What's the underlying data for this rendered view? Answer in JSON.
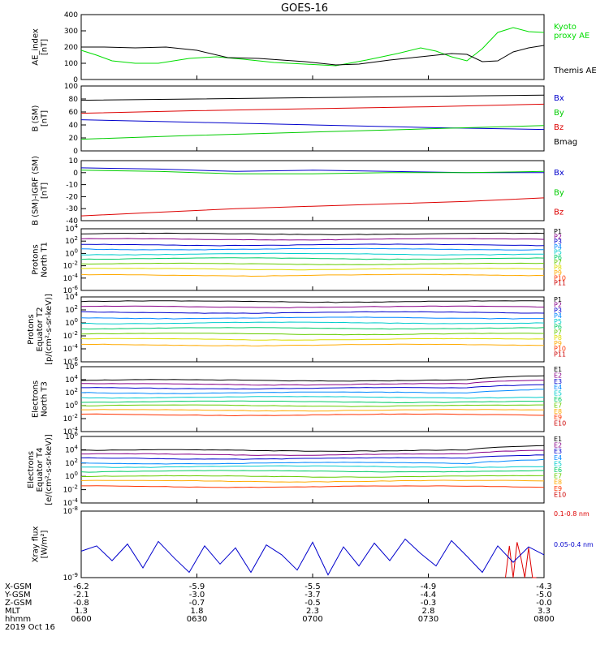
{
  "title": "GOES-16",
  "date_label": "2019 Oct 16",
  "x_axis": {
    "ticks": [
      "0600",
      "0630",
      "0700",
      "0730",
      "0800"
    ],
    "rows": [
      {
        "label": "X-GSM",
        "values": [
          "-6.2",
          "-5.9",
          "-5.5",
          "-4.9",
          "-4.3"
        ]
      },
      {
        "label": "Y-GSM",
        "values": [
          "-2.1",
          "-3.0",
          "-3.7",
          "-4.4",
          "-5.0"
        ]
      },
      {
        "label": "Z-GSM",
        "values": [
          "-0.8",
          "-0.7",
          "-0.5",
          "-0.3",
          "-0.0"
        ]
      },
      {
        "label": "MLT",
        "values": [
          "1.3",
          "1.8",
          "2.3",
          "2.8",
          "3.3"
        ]
      },
      {
        "label": "hhmm",
        "values": [
          "0600",
          "0630",
          "0700",
          "0730",
          "0800"
        ]
      }
    ]
  },
  "chart_data": [
    {
      "type": "line",
      "ylabel": "AE_index\n[nT]",
      "ylim": [
        0,
        400
      ],
      "yticks": [
        "0",
        "100",
        "200",
        "300",
        "400"
      ],
      "series": [
        {
          "name": "Kyoto\nproxy AE",
          "color": "#00dd00",
          "x": [
            0,
            4,
            8,
            14,
            20,
            28,
            35,
            42,
            50,
            58,
            66,
            74,
            82,
            88,
            92,
            96,
            100,
            104,
            108,
            112,
            116,
            120
          ],
          "values": [
            180,
            150,
            115,
            100,
            100,
            130,
            140,
            125,
            105,
            95,
            85,
            120,
            160,
            195,
            175,
            140,
            115,
            190,
            290,
            320,
            295,
            290
          ]
        },
        {
          "name": "Themis AE",
          "color": "#000000",
          "x": [
            0,
            6,
            14,
            22,
            30,
            38,
            46,
            52,
            58,
            62,
            66,
            72,
            80,
            88,
            96,
            100,
            104,
            108,
            112,
            116,
            120
          ],
          "values": [
            200,
            200,
            195,
            200,
            180,
            135,
            130,
            120,
            110,
            100,
            90,
            95,
            120,
            140,
            160,
            155,
            110,
            115,
            170,
            195,
            210
          ]
        }
      ]
    },
    {
      "type": "line",
      "ylabel": "B (SM)\n[nT]",
      "ylim": [
        0,
        100
      ],
      "yticks": [
        "0",
        "20",
        "40",
        "60",
        "80",
        "100"
      ],
      "series": [
        {
          "name": "Bx",
          "color": "#0000cc",
          "x": [
            0,
            30,
            60,
            90,
            120
          ],
          "values": [
            48,
            44,
            40,
            36,
            33
          ]
        },
        {
          "name": "By",
          "color": "#00cc00",
          "x": [
            0,
            30,
            60,
            90,
            120
          ],
          "values": [
            18,
            24,
            29,
            34,
            39
          ]
        },
        {
          "name": "Bz",
          "color": "#dd0000",
          "x": [
            0,
            30,
            60,
            90,
            120
          ],
          "values": [
            58,
            62,
            65,
            68,
            72
          ]
        },
        {
          "name": "Bmag",
          "color": "#000000",
          "x": [
            0,
            30,
            60,
            90,
            120
          ],
          "values": [
            78,
            80,
            82,
            84,
            86
          ]
        }
      ]
    },
    {
      "type": "line",
      "ylabel": "B (SM)-IGRF (SM)\n[nT]",
      "ylim": [
        -40,
        10
      ],
      "yticks": [
        "-40",
        "-30",
        "-20",
        "-10",
        "0",
        "10"
      ],
      "series": [
        {
          "name": "Bx",
          "color": "#0000cc",
          "x": [
            0,
            20,
            40,
            60,
            80,
            100,
            120
          ],
          "values": [
            4,
            3,
            1,
            2,
            1,
            0,
            0
          ]
        },
        {
          "name": "By",
          "color": "#00cc00",
          "x": [
            0,
            20,
            40,
            60,
            80,
            100,
            120
          ],
          "values": [
            2,
            1,
            -1,
            -1,
            0,
            0,
            1
          ]
        },
        {
          "name": "Bz",
          "color": "#dd0000",
          "x": [
            0,
            20,
            40,
            60,
            80,
            100,
            120
          ],
          "values": [
            -36,
            -33,
            -30,
            -28,
            -26,
            -24,
            -21
          ]
        }
      ]
    },
    {
      "type": "line",
      "scale": "log",
      "ylabel": "Protons\nNorth T1",
      "ylim": [
        1e-06,
        10000.0
      ],
      "yticks": [
        "10^4",
        "10^2",
        "10^0",
        "10^-2",
        "10^-4",
        "10^-6"
      ],
      "series": [
        {
          "name": "P1",
          "color": "#000000",
          "level": 1500
        },
        {
          "name": "P2",
          "color": "#880088",
          "level": 200
        },
        {
          "name": "P3",
          "color": "#0000cc",
          "level": 25
        },
        {
          "name": "P4",
          "color": "#0088ff",
          "level": 5
        },
        {
          "name": "P5",
          "color": "#00cccc",
          "level": 0.8
        },
        {
          "name": "P6",
          "color": "#00cc66",
          "level": 0.15
        },
        {
          "name": "P7",
          "color": "#66cc00",
          "level": 0.02
        },
        {
          "name": "P8",
          "color": "#dddd00",
          "level": 0.003
        },
        {
          "name": "P9",
          "color": "#ffaa00",
          "level": 0.0003
        },
        {
          "name": "P10",
          "color": "#ff3300",
          "level": null
        },
        {
          "name": "P11",
          "color": "#cc0000",
          "level": null
        }
      ]
    },
    {
      "type": "line",
      "scale": "log",
      "ylabel": "Protons\nEquator T2\n[p/(cm²-s-sr-keV)]",
      "ylim": [
        1e-06,
        10000.0
      ],
      "yticks": [
        "10^4",
        "10^2",
        "10^0",
        "10^-2",
        "10^-4",
        "10^-6"
      ],
      "series": [
        {
          "name": "P1",
          "color": "#000000",
          "level": 2000
        },
        {
          "name": "P2",
          "color": "#880088",
          "level": 300
        },
        {
          "name": "P3",
          "color": "#0000cc",
          "level": 40
        },
        {
          "name": "P4",
          "color": "#0088ff",
          "level": 6
        },
        {
          "name": "P5",
          "color": "#00cccc",
          "level": 1
        },
        {
          "name": "P6",
          "color": "#00cc66",
          "level": 0.15
        },
        {
          "name": "P7",
          "color": "#66cc00",
          "level": 0.02
        },
        {
          "name": "P8",
          "color": "#dddd00",
          "level": 0.003
        },
        {
          "name": "P9",
          "color": "#ffaa00",
          "level": 0.0004
        },
        {
          "name": "P10",
          "color": "#ff3300",
          "level": null
        },
        {
          "name": "P11",
          "color": "#cc0000",
          "level": null
        }
      ]
    },
    {
      "type": "line",
      "scale": "log",
      "ylabel": "Electrons\nNorth T3",
      "ylim": [
        0.0001,
        1000000.0
      ],
      "yticks": [
        "10^6",
        "10^4",
        "10^2",
        "10^0",
        "10^-2",
        "10^-4"
      ],
      "series": [
        {
          "name": "E1",
          "color": "#000000",
          "level": 8000
        },
        {
          "name": "E2",
          "color": "#880088",
          "level": 2000
        },
        {
          "name": "E3",
          "color": "#0000cc",
          "level": 500
        },
        {
          "name": "E4",
          "color": "#0088ff",
          "level": 100
        },
        {
          "name": "E5",
          "color": "#00cccc",
          "level": 20
        },
        {
          "name": "E6",
          "color": "#00cc66",
          "level": 4
        },
        {
          "name": "E7",
          "color": "#66cc00",
          "level": 1
        },
        {
          "name": "E8",
          "color": "#ffaa00",
          "level": 0.2
        },
        {
          "name": "E9",
          "color": "#ff3300",
          "level": 0.04
        },
        {
          "name": "E10",
          "color": "#cc0000",
          "level": null
        }
      ]
    },
    {
      "type": "line",
      "scale": "log",
      "ylabel": "Electrons\nEquator T4\n[e/(cm²-s-sr-keV)]",
      "ylim": [
        0.0001,
        1000000.0
      ],
      "yticks": [
        "10^6",
        "10^4",
        "10^2",
        "10^0",
        "10^-2",
        "10^-4"
      ],
      "series": [
        {
          "name": "E1",
          "color": "#000000",
          "level": 8000
        },
        {
          "name": "E2",
          "color": "#880088",
          "level": 2000
        },
        {
          "name": "E3",
          "color": "#0000cc",
          "level": 500
        },
        {
          "name": "E4",
          "color": "#0088ff",
          "level": 100
        },
        {
          "name": "E5",
          "color": "#00cccc",
          "level": 30
        },
        {
          "name": "E6",
          "color": "#00cc66",
          "level": 6
        },
        {
          "name": "E7",
          "color": "#66cc00",
          "level": 1
        },
        {
          "name": "E8",
          "color": "#ffaa00",
          "level": 0.2
        },
        {
          "name": "E9",
          "color": "#ff3300",
          "level": 0.03
        },
        {
          "name": "E10",
          "color": "#cc0000",
          "level": null
        }
      ]
    },
    {
      "type": "line",
      "scale": "log",
      "ylabel": "Xray flux\n[W/m²]",
      "ylim": [
        1e-09,
        1e-08
      ],
      "yticks": [
        "10^-8",
        "10^-9"
      ],
      "series": [
        {
          "name": "0.1-0.8 nm",
          "color": "#dd0000",
          "x": [
            110,
            111,
            112,
            113,
            114,
            115,
            116,
            117,
            118
          ],
          "values": [
            1e-09,
            3e-09,
            1e-09,
            3.4e-09,
            2e-09,
            1e-09,
            2.8e-09,
            1e-09,
            1e-09
          ]
        },
        {
          "name": "0.05-0.4 nm",
          "color": "#0000cc",
          "x": [
            0,
            4,
            8,
            12,
            16,
            20,
            24,
            28,
            32,
            36,
            40,
            44,
            48,
            52,
            56,
            60,
            64,
            68,
            72,
            76,
            80,
            84,
            88,
            92,
            96,
            100,
            104,
            108,
            112,
            116,
            120
          ],
          "values": [
            2.5e-09,
            3e-09,
            1.8e-09,
            3.2e-09,
            1.4e-09,
            3.5e-09,
            2e-09,
            1.2e-09,
            3e-09,
            1.6e-09,
            2.8e-09,
            1.2e-09,
            3.1e-09,
            2.2e-09,
            1.3e-09,
            3.4e-09,
            1.1e-09,
            2.9e-09,
            1.5e-09,
            3.3e-09,
            1.8e-09,
            3.8e-09,
            2.3e-09,
            1.5e-09,
            3.6e-09,
            2.1e-09,
            1.2e-09,
            3e-09,
            1.7e-09,
            2.9e-09,
            2.2e-09
          ]
        }
      ]
    }
  ]
}
